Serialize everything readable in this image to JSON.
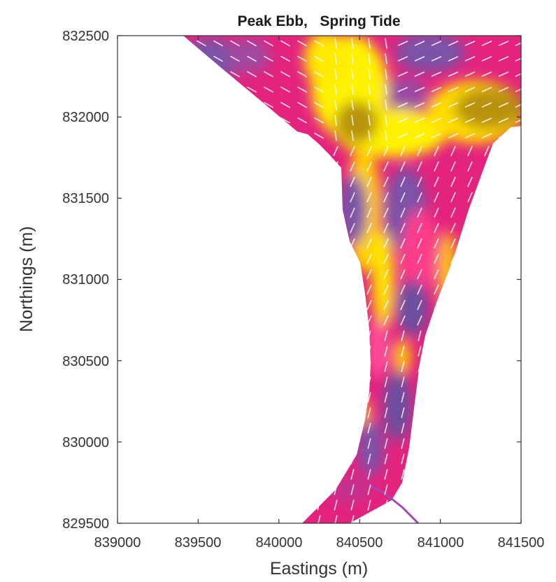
{
  "chart_data": {
    "type": "heatmap",
    "title": "Peak Ebb,   Spring Tide",
    "xlabel": "Eastings (m)",
    "ylabel": "Northings (m)",
    "xlim": [
      839000,
      841500
    ],
    "ylim": [
      829500,
      832500
    ],
    "x_ticks": [
      "839000",
      "839500",
      "840000",
      "840500",
      "841000",
      "841500"
    ],
    "y_ticks": [
      "832500",
      "832000",
      "831500",
      "831000",
      "830500",
      "830000",
      "829500"
    ],
    "grid": false,
    "colormap": [
      "#6a4fa0",
      "#e0207a",
      "#ff3d8a",
      "#ffd000",
      "#fff200",
      "#b8920a"
    ],
    "vectors": "white"
  }
}
